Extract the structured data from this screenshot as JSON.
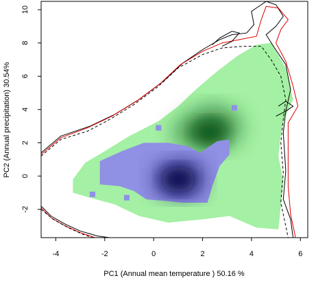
{
  "chart_data": {
    "type": "heatmap",
    "title": "",
    "xlabel": "PC1 (Annual mean temperature ) 50.16 %",
    "ylabel": "PC2 (Annual precipitation) 30.54%",
    "xlim": [
      -4.6,
      6.3
    ],
    "ylim": [
      -3.7,
      10.5
    ],
    "xticks": [
      -4,
      -2,
      0,
      2,
      4,
      6
    ],
    "yticks": [
      -2,
      0,
      2,
      4,
      6,
      8,
      10
    ],
    "grid": false,
    "legend": "none",
    "colors": {
      "green_light": "#a4f0a4",
      "green_dark": "#0f5a1e",
      "blue_light": "#9090e4",
      "blue_dark": "#0c0c55",
      "contour_black": "#000000",
      "contour_red": "#dd0000"
    },
    "density_layers": [
      {
        "name": "green",
        "extent": [
          [
            -3.3,
            -0.2
          ],
          [
            -2.8,
            0.8
          ],
          [
            -2.0,
            1.5
          ],
          [
            -1.0,
            2.4
          ],
          [
            0.2,
            3.3
          ],
          [
            1.0,
            4.2
          ],
          [
            1.8,
            5.3
          ],
          [
            2.6,
            6.3
          ],
          [
            3.4,
            7.2
          ],
          [
            4.2,
            7.9
          ],
          [
            4.8,
            8.0
          ],
          [
            5.4,
            6.5
          ],
          [
            5.7,
            4.6
          ],
          [
            5.3,
            3.3
          ],
          [
            5.2,
            2.5
          ],
          [
            5.1,
            1.2
          ],
          [
            5.3,
            -0.3
          ],
          [
            5.2,
            -1.8
          ],
          [
            5.1,
            -3.2
          ],
          [
            4.2,
            -3.1
          ],
          [
            3.1,
            -2.4
          ],
          [
            2.0,
            -2.6
          ],
          [
            0.6,
            -2.8
          ],
          [
            -0.6,
            -2.4
          ],
          [
            -1.6,
            -1.7
          ],
          [
            -2.6,
            -1.3
          ],
          [
            -3.3,
            -1.0
          ]
        ],
        "peak": [
          2.3,
          2.6
        ],
        "peak_extent": [
          [
            0.8,
            2.7
          ],
          [
            1.5,
            3.6
          ],
          [
            2.3,
            4.2
          ],
          [
            3.2,
            3.8
          ],
          [
            3.6,
            2.9
          ],
          [
            3.1,
            1.9
          ],
          [
            2.1,
            1.7
          ],
          [
            1.0,
            2.0
          ]
        ]
      },
      {
        "name": "blue",
        "extent": [
          [
            -2.2,
            0.9
          ],
          [
            -1.3,
            1.5
          ],
          [
            -0.4,
            2.0
          ],
          [
            0.6,
            2.0
          ],
          [
            1.4,
            1.8
          ],
          [
            1.9,
            1.4
          ],
          [
            2.6,
            2.1
          ],
          [
            3.1,
            2.2
          ],
          [
            3.1,
            1.3
          ],
          [
            2.7,
            0.6
          ],
          [
            2.4,
            -0.6
          ],
          [
            2.2,
            -1.6
          ],
          [
            1.2,
            -1.6
          ],
          [
            0.5,
            -1.5
          ],
          [
            -0.3,
            -1.4
          ],
          [
            -0.8,
            -0.9
          ],
          [
            -1.4,
            -0.6
          ],
          [
            -2.2,
            -0.5
          ]
        ],
        "peak": [
          1.0,
          -0.2
        ],
        "peak_extent": [
          [
            0.2,
            0.4
          ],
          [
            1.0,
            0.9
          ],
          [
            1.9,
            0.6
          ],
          [
            2.0,
            -0.6
          ],
          [
            1.4,
            -1.2
          ],
          [
            0.5,
            -1.0
          ],
          [
            0.0,
            -0.4
          ]
        ]
      }
    ],
    "blue_patches": [
      {
        "x": -2.5,
        "y": -1.1
      },
      {
        "x": -1.1,
        "y": -1.3
      },
      {
        "x": 0.2,
        "y": 2.9
      },
      {
        "x": 3.3,
        "y": 4.1
      }
    ],
    "contours": [
      {
        "name": "",
        "color": "#000000",
        "dash": "solid",
        "points": [
          [
            -4.6,
            1.4
          ],
          [
            -3.8,
            2.4
          ],
          [
            -2.6,
            3.0
          ],
          [
            -1.6,
            3.7
          ],
          [
            -0.6,
            4.6
          ],
          [
            0.4,
            5.7
          ],
          [
            1.2,
            6.8
          ],
          [
            2.0,
            7.6
          ],
          [
            2.7,
            8.2
          ],
          [
            3.2,
            8.5
          ],
          [
            3.8,
            8.6
          ],
          [
            4.1,
            9.1
          ],
          [
            4.0,
            9.9
          ],
          [
            4.6,
            10.5
          ],
          [
            5.0,
            10.3
          ],
          [
            5.3,
            9.6
          ],
          [
            5.0,
            9.0
          ],
          [
            4.6,
            8.5
          ],
          [
            4.9,
            7.8
          ],
          [
            5.4,
            6.7
          ],
          [
            5.6,
            5.2
          ],
          [
            5.4,
            3.9
          ],
          [
            5.3,
            2.6
          ],
          [
            5.4,
            0.3
          ],
          [
            5.3,
            -1.4
          ],
          [
            5.6,
            -2.6
          ],
          [
            5.7,
            -3.7
          ]
        ]
      },
      {
        "name": "",
        "color": "#dd0000",
        "dash": "solid",
        "points": [
          [
            -4.6,
            1.3
          ],
          [
            -3.8,
            2.3
          ],
          [
            -2.7,
            2.9
          ],
          [
            -1.7,
            3.6
          ],
          [
            -0.7,
            4.5
          ],
          [
            0.3,
            5.6
          ],
          [
            1.1,
            6.7
          ],
          [
            2.0,
            7.5
          ],
          [
            2.8,
            8.0
          ],
          [
            3.5,
            8.2
          ],
          [
            4.2,
            8.4
          ],
          [
            4.4,
            9.4
          ],
          [
            4.6,
            10.2
          ],
          [
            5.1,
            10.1
          ],
          [
            5.5,
            9.4
          ],
          [
            5.2,
            8.8
          ],
          [
            5.0,
            8.0
          ],
          [
            5.4,
            6.9
          ],
          [
            5.7,
            5.4
          ],
          [
            5.9,
            4.2
          ],
          [
            5.5,
            3.2
          ],
          [
            5.5,
            1.6
          ],
          [
            5.5,
            -0.6
          ],
          [
            5.6,
            -2.3
          ],
          [
            5.8,
            -3.7
          ]
        ]
      },
      {
        "name": "",
        "color": "#000000",
        "dash": "dashed",
        "points": [
          [
            -4.6,
            1.2
          ],
          [
            -3.8,
            2.2
          ],
          [
            -2.7,
            2.7
          ],
          [
            -1.8,
            3.4
          ],
          [
            -0.8,
            4.3
          ],
          [
            0.2,
            5.4
          ],
          [
            1.0,
            6.5
          ],
          [
            2.0,
            7.3
          ],
          [
            2.8,
            7.7
          ],
          [
            3.7,
            7.8
          ],
          [
            4.4,
            7.8
          ],
          [
            4.8,
            7.0
          ],
          [
            5.2,
            6.0
          ],
          [
            5.4,
            4.6
          ],
          [
            5.3,
            3.4
          ],
          [
            5.2,
            2.0
          ],
          [
            5.3,
            0.2
          ],
          [
            5.2,
            -1.6
          ],
          [
            5.4,
            -3.0
          ],
          [
            5.5,
            -3.7
          ]
        ]
      },
      {
        "name": "",
        "color": "#000000",
        "dash": "solid",
        "points": [
          [
            -4.6,
            -1.8
          ],
          [
            -4.2,
            -2.4
          ],
          [
            -3.6,
            -2.9
          ],
          [
            -3.0,
            -3.3
          ],
          [
            -2.3,
            -3.6
          ],
          [
            -1.8,
            -3.7
          ]
        ]
      },
      {
        "name": "",
        "color": "#dd0000",
        "dash": "solid",
        "points": [
          [
            -4.6,
            -1.9
          ],
          [
            -4.2,
            -2.5
          ],
          [
            -3.6,
            -3.0
          ],
          [
            -3.0,
            -3.4
          ],
          [
            -2.4,
            -3.7
          ]
        ]
      },
      {
        "name": "",
        "color": "#000000",
        "dash": "dashed",
        "points": [
          [
            -4.6,
            -2.0
          ],
          [
            -4.1,
            -2.6
          ],
          [
            -3.5,
            -3.1
          ],
          [
            -2.9,
            -3.5
          ],
          [
            -2.5,
            -3.7
          ]
        ]
      },
      {
        "name": "",
        "color": "#000000",
        "dash": "solid",
        "points": [
          [
            2.4,
            7.9
          ],
          [
            2.7,
            8.3
          ],
          [
            3.2,
            8.7
          ],
          [
            3.5,
            8.6
          ],
          [
            3.2,
            8.1
          ],
          [
            2.8,
            7.8
          ]
        ]
      },
      {
        "name": "",
        "color": "#000000",
        "dash": "solid",
        "points": [
          [
            5.0,
            3.6
          ],
          [
            5.4,
            3.9
          ],
          [
            5.7,
            4.2
          ],
          [
            5.4,
            4.5
          ],
          [
            5.1,
            4.2
          ]
        ]
      }
    ]
  }
}
